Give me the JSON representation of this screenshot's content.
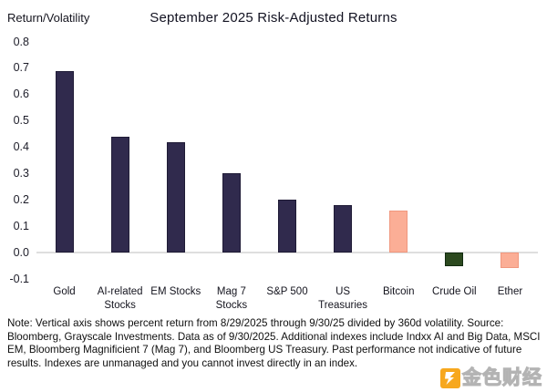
{
  "chart_data": {
    "type": "bar",
    "title": "September 2025 Risk-Adjusted Returns",
    "ylabel": "Return/Volatility",
    "xlabel": "",
    "ylim": [
      -0.1,
      0.8
    ],
    "yticks": [
      0.8,
      0.7,
      0.6,
      0.5,
      0.4,
      0.3,
      0.2,
      0.1,
      0.0,
      -0.1
    ],
    "grid": "zero-line-only",
    "legend": "none",
    "categories": [
      "Gold",
      "AI-related\nStocks",
      "EM Stocks",
      "Mag 7\nStocks",
      "S&P 500",
      "US\nTreasuries",
      "Bitcoin",
      "Crude Oil",
      "Ether"
    ],
    "values": [
      0.69,
      0.44,
      0.42,
      0.3,
      0.2,
      0.18,
      0.16,
      -0.05,
      -0.06
    ],
    "bar_colors": [
      "navy",
      "navy",
      "navy",
      "navy",
      "navy",
      "navy",
      "salmon",
      "green",
      "salmon"
    ],
    "palette": {
      "navy": "#302A4D",
      "navy_border": "#1F1B36",
      "salmon": "#FBAE96",
      "salmon_border": "#F0977E",
      "green": "#2C491F",
      "green_border": "#122B10"
    }
  },
  "note": {
    "text": "Note: Vertical axis shows percent return from 8/29/2025 through 9/30/25 divided by 360d volatility. Source: Bloomberg, Grayscale Investments. Data as of 9/30/2025. Additional indexes include Indxx AI and Big Data, MSCI EM, Bloomberg Magnificient 7 (Mag 7), and Bloomberg US Treasury. Past performance not indicative of future results. Indexes are unmanaged and you cannot invest directly in an index."
  },
  "watermark": {
    "text": "金色财经",
    "logo_color": "#F7A81E"
  }
}
